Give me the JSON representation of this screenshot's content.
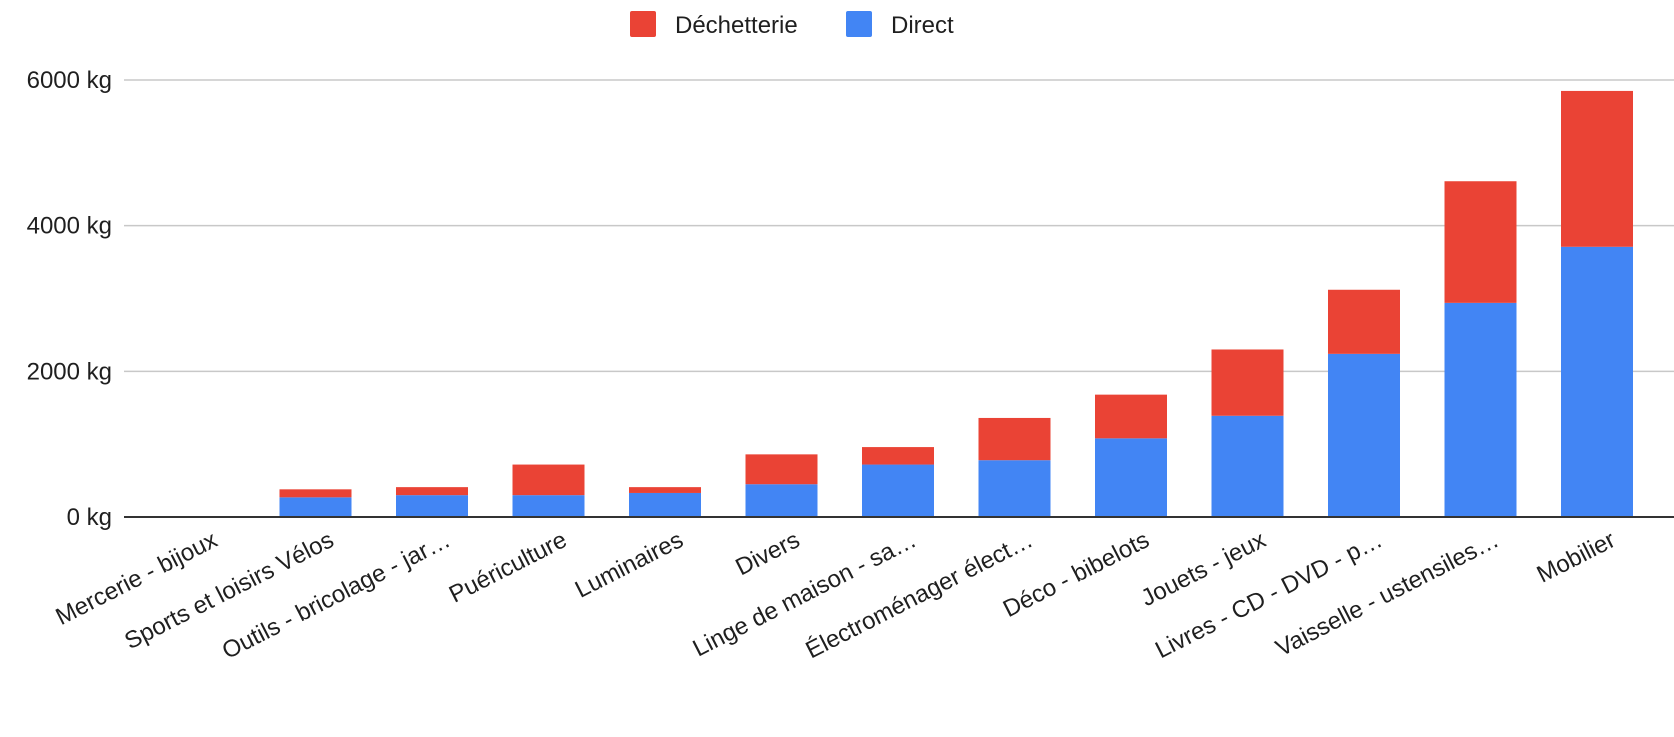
{
  "chart_data": {
    "type": "bar",
    "stacked": true,
    "categories": [
      "Mercerie - bijoux",
      "Sports et loisirs Vélos",
      "Outils - bricolage - jar…",
      "Puériculture",
      "Luminaires",
      "Divers",
      "Linge de maison - sa…",
      "Électroménager élect…",
      "Déco - bibelots",
      "Jouets - jeux",
      "Livres - CD - DVD - p…",
      "Vaisselle - ustensiles…",
      "Mobilier"
    ],
    "series": [
      {
        "name": "Direct",
        "color": "#4285f4",
        "values": [
          10,
          270,
          300,
          300,
          330,
          450,
          720,
          780,
          1080,
          1390,
          2240,
          2940,
          3710
        ]
      },
      {
        "name": "Déchetterie",
        "color": "#ea4335",
        "values": [
          0,
          110,
          110,
          420,
          80,
          410,
          240,
          580,
          600,
          910,
          880,
          1670,
          2140
        ]
      }
    ],
    "legend_order": [
      "Déchetterie",
      "Direct"
    ],
    "legend_position": "top",
    "y_ticks": [
      0,
      2000,
      4000,
      6000
    ],
    "y_tick_labels": [
      "0  kg",
      "2000  kg",
      "4000  kg",
      "6000  kg"
    ],
    "ylim": [
      0,
      6000
    ],
    "grid": true,
    "title": "",
    "xlabel": "",
    "ylabel": ""
  }
}
